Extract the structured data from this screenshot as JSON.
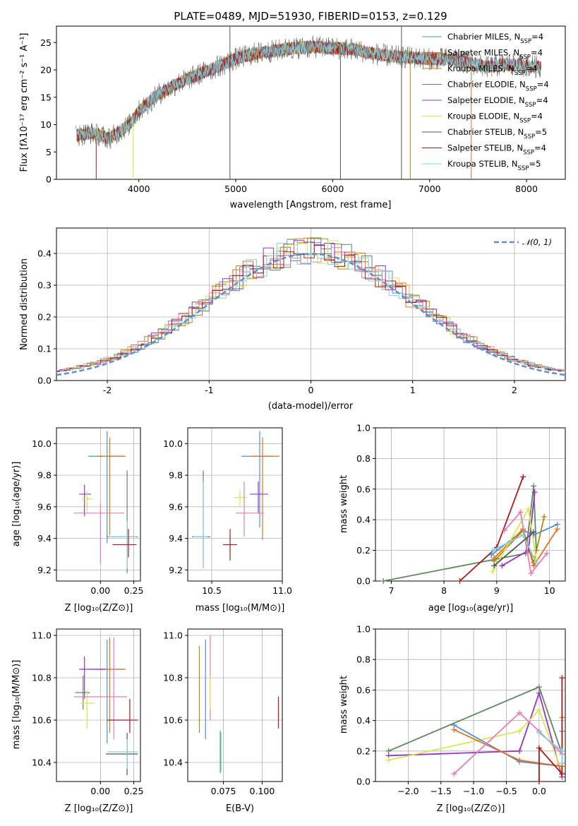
{
  "colors": {
    "chabrier_miles": "#4a90e2",
    "salpeter_miles": "#e8711a",
    "kroupa_miles": "#b8860b",
    "chabrier_elodie": "#5a8a5e",
    "salpeter_elodie": "#9b30c8",
    "kroupa_elodie": "#d8e84a",
    "chabrier_stelib": "#555555",
    "salpeter_stelib": "#b01818",
    "kroupa_stelib": "#7fd0e0",
    "pink": "#e87bb8",
    "gauss": "#5b8fd6"
  },
  "chart_data": [
    {
      "id": "spectrum",
      "type": "line",
      "title": "PLATE=0489, MJD=51930, FIBERID=0153, z=0.129",
      "xlabel": "wavelength [Angstrom, rest frame]",
      "ylabel": "Flux [fλ10⁻¹⁷ erg cm⁻² s⁻¹ A⁻¹]",
      "xlim": [
        3150,
        8400
      ],
      "ylim": [
        0,
        28
      ],
      "xticks": [
        4000,
        5000,
        6000,
        7000,
        8000
      ],
      "yticks": [
        0,
        5,
        10,
        15,
        20,
        25
      ],
      "grid": false,
      "legend_position": "right",
      "envelope": {
        "x": [
          3350,
          3500,
          3700,
          3900,
          4000,
          4200,
          4400,
          4600,
          4800,
          5000,
          5200,
          5400,
          5600,
          5800,
          6000,
          6200,
          6400,
          6600,
          6800,
          7000,
          7200,
          7400,
          7600,
          7800,
          8000,
          8150
        ],
        "y": [
          8,
          8.5,
          7.5,
          10,
          12.5,
          15.5,
          17.5,
          19,
          20.5,
          22,
          23,
          23.5,
          24,
          24.2,
          24,
          23.8,
          23,
          22.5,
          22.3,
          22,
          22,
          21.3,
          20.5,
          21,
          20.8,
          20.5
        ]
      },
      "series": [
        {
          "name": "Chabrier MILES",
          "nssp": "4",
          "color_key": "chabrier_miles"
        },
        {
          "name": "Salpeter MILES",
          "nssp": "4",
          "color_key": "salpeter_miles"
        },
        {
          "name": "Kroupa MILES",
          "nssp": "4",
          "color_key": "kroupa_miles"
        },
        {
          "name": "Chabrier ELODIE",
          "nssp": "4",
          "color_key": "chabrier_elodie"
        },
        {
          "name": "Salpeter ELODIE",
          "nssp": "4",
          "color_key": "salpeter_elodie"
        },
        {
          "name": "Kroupa ELODIE",
          "nssp": "4",
          "color_key": "kroupa_elodie"
        },
        {
          "name": "Chabrier STELIB",
          "nssp": "5",
          "color_key": "chabrier_stelib"
        },
        {
          "name": "Salpeter STELIB",
          "nssp": "4",
          "color_key": "salpeter_stelib"
        },
        {
          "name": "Kroupa STELIB",
          "nssp": "5",
          "color_key": "kroupa_stelib"
        }
      ]
    },
    {
      "id": "residuals",
      "type": "area",
      "xlabel": "(data-model)/error",
      "ylabel": "Normed distribution",
      "xlim": [
        -2.5,
        2.5
      ],
      "ylim": [
        0,
        0.48
      ],
      "xticks": [
        -2,
        -1,
        0,
        1,
        2
      ],
      "yticks": [
        0.0,
        0.1,
        0.2,
        0.3,
        0.4
      ],
      "grid": true,
      "legend_position": "top-right",
      "gauss_label": "𝒩(0, 1)",
      "bin_width": 0.1,
      "n_histograms": 9
    },
    {
      "id": "z_age",
      "type": "scatter",
      "xlabel": "Z [log₁₀(Z/Z⊙)]",
      "ylabel": "age  [log₁₀(age/yr)]",
      "xlim": [
        -0.33,
        0.3
      ],
      "ylim": [
        9.13,
        10.1
      ],
      "xticks": [
        0.0,
        0.25
      ],
      "yticks": [
        9.2,
        9.4,
        9.6,
        9.8,
        10.0
      ],
      "grid": true,
      "points": [
        {
          "x": 0.05,
          "y": 9.92,
          "xerr": [
            0.14,
            0.12
          ],
          "yerr": [
            0.55,
            0.16
          ],
          "c": "chabrier_miles"
        },
        {
          "x": 0.07,
          "y": 9.92,
          "xerr": [
            0.1,
            0.12
          ],
          "yerr": [
            0.5,
            0.12
          ],
          "c": "salpeter_miles"
        },
        {
          "x": -0.12,
          "y": 9.68,
          "xerr": [
            0.04,
            0.05
          ],
          "yerr": [
            0.14,
            0.06
          ],
          "c": "salpeter_elodie"
        },
        {
          "x": -0.1,
          "y": 9.65,
          "xerr": [
            0.04,
            0.04
          ],
          "yerr": [
            0.08,
            0.05
          ],
          "c": "kroupa_elodie"
        },
        {
          "x": 0.0,
          "y": 9.56,
          "xerr": [
            0.2,
            0.18
          ],
          "yerr": [
            0.32,
            0.06
          ],
          "c": "pink"
        },
        {
          "x": 0.2,
          "y": 9.41,
          "xerr": [
            0.15,
            0.08
          ],
          "yerr": [
            0.23,
            0.42
          ],
          "c": "chabrier_elodie"
        },
        {
          "x": 0.2,
          "y": 9.41,
          "xerr": [
            0.14,
            0.07
          ],
          "yerr": [
            0.2,
            0.1
          ],
          "c": "kroupa_stelib"
        },
        {
          "x": 0.21,
          "y": 9.36,
          "xerr": [
            0.12,
            0.06
          ],
          "yerr": [
            0.08,
            0.1
          ],
          "c": "salpeter_stelib"
        }
      ]
    },
    {
      "id": "mass_age",
      "type": "scatter",
      "xlabel": "mass [log₁₀(M/M⊙)]",
      "ylabel": "",
      "xlim": [
        10.33,
        11.0
      ],
      "ylim": [
        9.13,
        10.1
      ],
      "xticks": [
        10.5,
        11.0
      ],
      "yticks": [
        9.2,
        9.4,
        9.6,
        9.8,
        10.0
      ],
      "grid": true,
      "points": [
        {
          "x": 10.84,
          "y": 9.92,
          "xerr": [
            0.13,
            0.1
          ],
          "yerr": [
            0.45,
            0.16
          ],
          "c": "chabrier_miles"
        },
        {
          "x": 10.86,
          "y": 9.92,
          "xerr": [
            0.08,
            0.12
          ],
          "yerr": [
            0.53,
            0.12
          ],
          "c": "salpeter_miles"
        },
        {
          "x": 10.83,
          "y": 9.68,
          "xerr": [
            0.06,
            0.07
          ],
          "yerr": [
            0.12,
            0.08
          ],
          "c": "salpeter_elodie"
        },
        {
          "x": 10.7,
          "y": 9.66,
          "xerr": [
            0.04,
            0.05
          ],
          "yerr": [
            0.06,
            0.05
          ],
          "c": "kroupa_elodie"
        },
        {
          "x": 10.73,
          "y": 9.56,
          "xerr": [
            0.06,
            0.14
          ],
          "yerr": [
            0.15,
            0.2
          ],
          "c": "pink"
        },
        {
          "x": 10.44,
          "y": 9.41,
          "xerr": [
            0.08,
            0.05
          ],
          "yerr": [
            0.2,
            0.42
          ],
          "c": "chabrier_elodie"
        },
        {
          "x": 10.44,
          "y": 9.41,
          "xerr": [
            0.07,
            0.03
          ],
          "yerr": [
            0.2,
            0.35
          ],
          "c": "kroupa_stelib"
        },
        {
          "x": 10.63,
          "y": 9.36,
          "xerr": [
            0.05,
            0.05
          ],
          "yerr": [
            0.1,
            0.1
          ],
          "c": "salpeter_stelib"
        }
      ]
    },
    {
      "id": "age_weight",
      "type": "line",
      "xlabel": "age  [log₁₀(age/yr)]",
      "ylabel": "mass weight",
      "xlim": [
        6.7,
        10.3
      ],
      "ylim": [
        0,
        1.0
      ],
      "xticks": [
        7,
        8,
        9,
        10
      ],
      "yticks": [
        0.0,
        0.2,
        0.4,
        0.6,
        0.8,
        1.0
      ],
      "grid": true,
      "series": [
        {
          "c": "chabrier_elodie",
          "x": [
            6.85,
            9.55,
            9.7,
            9.75
          ],
          "y": [
            0.0,
            0.18,
            0.62,
            0.2
          ]
        },
        {
          "c": "salpeter_stelib",
          "x": [
            8.3,
            9.0,
            9.5
          ],
          "y": [
            0.0,
            0.22,
            0.68
          ]
        },
        {
          "c": "chabrier_miles",
          "x": [
            8.9,
            9.5,
            9.7,
            10.15
          ],
          "y": [
            0.17,
            0.33,
            0.3,
            0.37
          ]
        },
        {
          "c": "salpeter_miles",
          "x": [
            8.95,
            9.5,
            9.7,
            10.15
          ],
          "y": [
            0.15,
            0.34,
            0.1,
            0.34
          ]
        },
        {
          "c": "kroupa_miles",
          "x": [
            8.95,
            9.5,
            9.7,
            9.9
          ],
          "y": [
            0.13,
            0.33,
            0.12,
            0.42
          ]
        },
        {
          "c": "salpeter_elodie",
          "x": [
            9.1,
            9.6,
            9.72
          ],
          "y": [
            0.1,
            0.2,
            0.58
          ]
        },
        {
          "c": "kroupa_elodie",
          "x": [
            8.92,
            9.6,
            9.75
          ],
          "y": [
            0.06,
            0.47,
            0.14
          ]
        },
        {
          "c": "pink",
          "x": [
            9.15,
            9.45,
            9.65,
            9.95
          ],
          "y": [
            0.33,
            0.45,
            0.05,
            0.18
          ]
        },
        {
          "c": "kroupa_stelib",
          "x": [
            8.92,
            9.5,
            9.75
          ],
          "y": [
            0.2,
            0.3,
            0.12
          ]
        },
        {
          "c": "chabrier_stelib",
          "x": [
            8.95,
            9.7
          ],
          "y": [
            0.1,
            0.32
          ]
        }
      ]
    },
    {
      "id": "z_mass",
      "type": "scatter",
      "xlabel": "Z [log₁₀(Z/Z⊙)]",
      "ylabel": "mass [log₁₀(M/M⊙)]",
      "xlim": [
        -0.33,
        0.3
      ],
      "ylim": [
        10.31,
        11.03
      ],
      "xticks": [
        0.0,
        0.25
      ],
      "yticks": [
        10.4,
        10.6,
        10.8,
        11.0
      ],
      "grid": true,
      "points": [
        {
          "x": 0.05,
          "y": 10.84,
          "xerr": [
            0.14,
            0.13
          ],
          "yerr": [
            0.35,
            0.14
          ],
          "c": "chabrier_miles"
        },
        {
          "x": 0.07,
          "y": 10.84,
          "xerr": [
            0.1,
            0.12
          ],
          "yerr": [
            0.3,
            0.15
          ],
          "c": "salpeter_miles"
        },
        {
          "x": -0.12,
          "y": 10.84,
          "xerr": [
            0.04,
            0.16
          ],
          "yerr": [
            0.14,
            0.06
          ],
          "c": "salpeter_elodie"
        },
        {
          "x": -0.13,
          "y": 10.73,
          "xerr": [
            0.06,
            0.05
          ],
          "yerr": [
            0.08,
            0.08
          ],
          "c": "chabrier_elodie"
        },
        {
          "x": -0.1,
          "y": 10.68,
          "xerr": [
            0.05,
            0.06
          ],
          "yerr": [
            0.12,
            0.06
          ],
          "c": "kroupa_elodie"
        },
        {
          "x": 0.1,
          "y": 10.71,
          "xerr": [
            0.3,
            0.1
          ],
          "yerr": [
            0.2,
            0.28
          ],
          "c": "pink"
        },
        {
          "x": 0.22,
          "y": 10.6,
          "xerr": [
            0.17,
            0.06
          ],
          "yerr": [
            0.06,
            0.1
          ],
          "c": "salpeter_stelib"
        },
        {
          "x": 0.2,
          "y": 10.44,
          "xerr": [
            0.16,
            0.08
          ],
          "yerr": [
            0.1,
            0.1
          ],
          "c": "chabrier_stelib"
        },
        {
          "x": 0.2,
          "y": 10.45,
          "xerr": [
            0.15,
            0.08
          ],
          "yerr": [
            0.08,
            0.06
          ],
          "c": "kroupa_stelib"
        }
      ]
    },
    {
      "id": "ebv_mass",
      "type": "scatter",
      "xlabel": "E(B-V)",
      "ylabel": "",
      "xlim": [
        0.052,
        0.113
      ],
      "ylim": [
        10.31,
        11.03
      ],
      "xticks": [
        0.075,
        0.1
      ],
      "xticklabels": [
        "0.075",
        "0.100"
      ],
      "yticks": [
        10.4,
        10.6,
        10.8,
        11.0
      ],
      "grid": true,
      "points": [
        {
          "x": 0.0595,
          "y": 10.8,
          "yerr": [
            0.26,
            0.15
          ],
          "c": "kroupa_miles"
        },
        {
          "x": 0.0635,
          "y": 10.8,
          "yerr": [
            0.29,
            0.18
          ],
          "c": "chabrier_miles"
        },
        {
          "x": 0.0665,
          "y": 10.8,
          "yerr": [
            0.2,
            0.2
          ],
          "c": "pink"
        },
        {
          "x": 0.0665,
          "y": 10.73,
          "yerr": [
            0.08,
            0.08
          ],
          "c": "kroupa_elodie"
        },
        {
          "x": 0.073,
          "y": 10.45,
          "yerr": [
            0.1,
            0.1
          ],
          "c": "chabrier_elodie"
        },
        {
          "x": 0.0735,
          "y": 10.45,
          "yerr": [
            0.09,
            0.09
          ],
          "c": "kroupa_stelib"
        },
        {
          "x": 0.1105,
          "y": 10.64,
          "yerr": [
            0.08,
            0.07
          ],
          "c": "salpeter_stelib"
        }
      ]
    },
    {
      "id": "z_weight",
      "type": "line",
      "xlabel": "Z [log₁₀(Z/Z⊙)]",
      "ylabel": "mass weight",
      "xlim": [
        -2.5,
        0.4
      ],
      "ylim": [
        0,
        1.0
      ],
      "xticks": [
        -2.0,
        -1.5,
        -1.0,
        -0.5,
        0.0
      ],
      "xticklabels": [
        "−2.0",
        "−1.5",
        "−1.0",
        "−0.5",
        "0.0"
      ],
      "yticks": [
        0.0,
        0.2,
        0.4,
        0.6,
        0.8,
        1.0
      ],
      "grid": true,
      "series": [
        {
          "c": "chabrier_elodie",
          "x": [
            -2.3,
            0.0,
            0.35
          ],
          "y": [
            0.2,
            0.62,
            0.18
          ]
        },
        {
          "c": "salpeter_elodie",
          "x": [
            -2.3,
            -0.3,
            0.0,
            0.35
          ],
          "y": [
            0.17,
            0.2,
            0.58,
            0.03
          ]
        },
        {
          "c": "kroupa_elodie",
          "x": [
            -2.3,
            -0.3,
            0.0,
            0.35
          ],
          "y": [
            0.14,
            0.33,
            0.47,
            0.06
          ]
        },
        {
          "c": "chabrier_miles",
          "x": [
            -1.3,
            -0.3,
            0.35,
            0.35
          ],
          "y": [
            0.37,
            0.13,
            0.1,
            0.33
          ]
        },
        {
          "c": "salpeter_miles",
          "x": [
            -1.3,
            -0.3,
            0.35,
            0.35
          ],
          "y": [
            0.34,
            0.14,
            0.1,
            0.42
          ]
        },
        {
          "c": "salpeter_stelib",
          "x": [
            0.0,
            0.0,
            0.35,
            0.35
          ],
          "y": [
            0.0,
            0.22,
            0.05,
            0.68
          ]
        },
        {
          "c": "pink",
          "x": [
            -1.3,
            -0.3,
            0.0,
            0.35
          ],
          "y": [
            0.05,
            0.45,
            0.33,
            0.18
          ]
        },
        {
          "c": "kroupa_stelib",
          "x": [
            0.0,
            0.35,
            0.35
          ],
          "y": [
            0.32,
            0.2,
            0.12
          ]
        }
      ]
    }
  ]
}
